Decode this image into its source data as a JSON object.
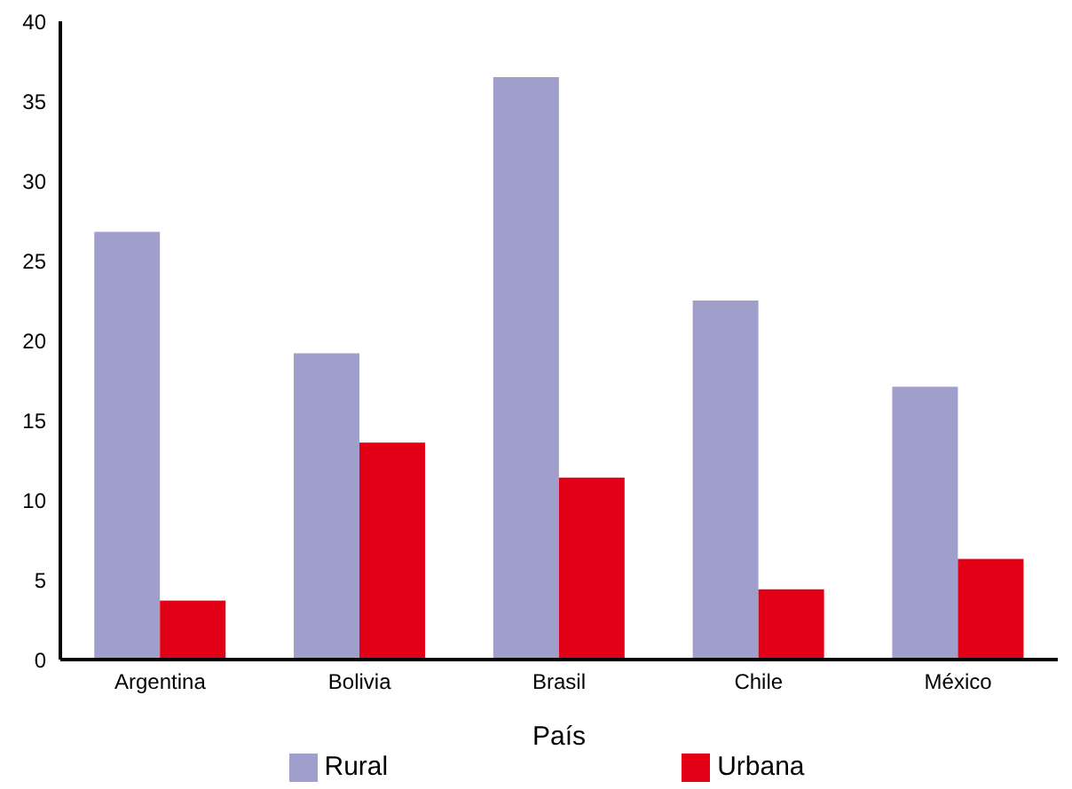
{
  "chart_data": {
    "type": "bar",
    "xlabel": "País",
    "categories": [
      "Argentina",
      "Bolivia",
      "Brasil",
      "Chile",
      "México"
    ],
    "series": [
      {
        "name": "Rural",
        "color": "#a09fcb",
        "values": [
          26.8,
          19.2,
          36.5,
          22.5,
          17.1
        ]
      },
      {
        "name": "Urbana",
        "color": "#e10015",
        "values": [
          3.7,
          13.6,
          11.4,
          4.4,
          6.3
        ]
      }
    ],
    "ylim": [
      0,
      40
    ],
    "yticks": [
      0,
      5,
      10,
      15,
      20,
      25,
      30,
      35,
      40
    ],
    "grid": false,
    "legend": "bottom"
  }
}
